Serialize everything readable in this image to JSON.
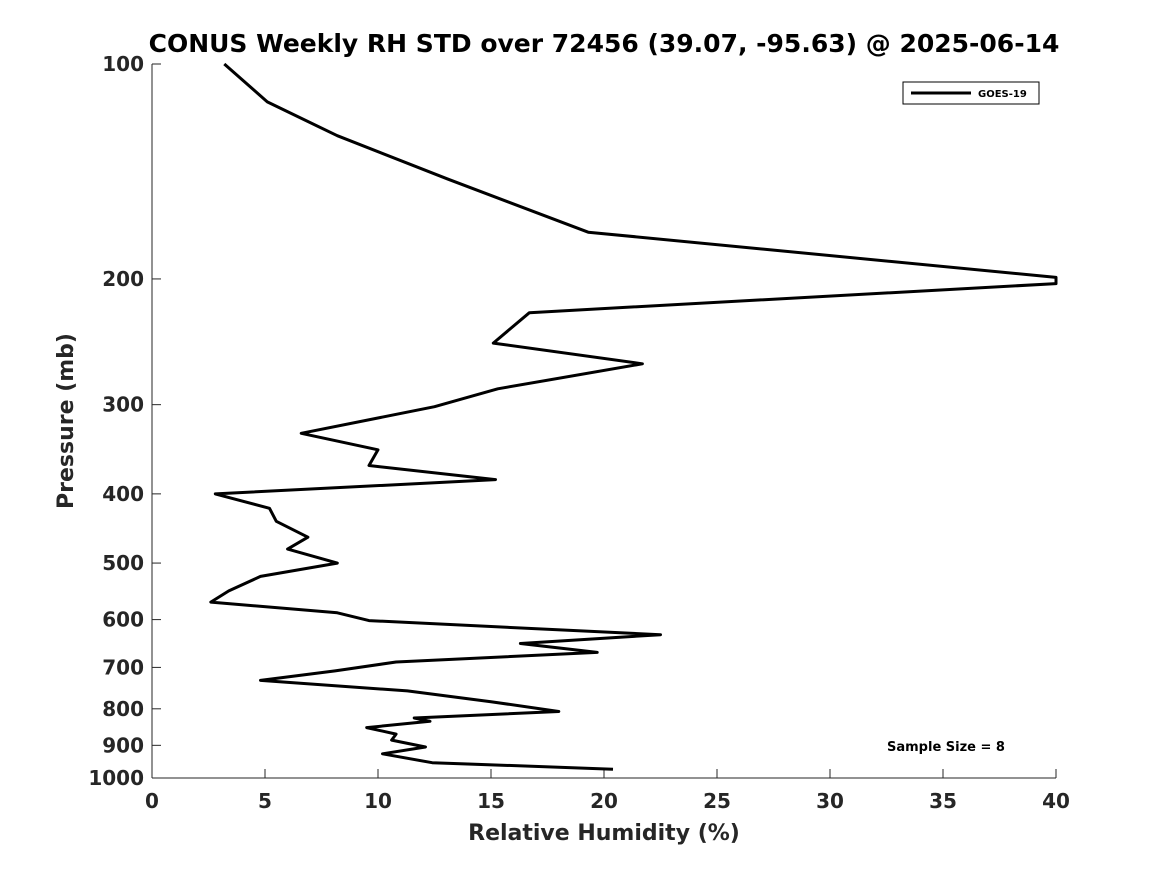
{
  "chart_data": {
    "type": "line",
    "title": "CONUS Weekly RH STD over 72456 (39.07, -95.63) @ 2025-06-14",
    "xlabel": "Relative Humidity (%)",
    "ylabel": "Pressure (mb)",
    "xlim": [
      0,
      40
    ],
    "ylim": [
      1000,
      100
    ],
    "yscale": "log",
    "xticks": [
      0,
      5,
      10,
      15,
      20,
      25,
      30,
      35,
      40
    ],
    "xtick_labels": [
      "0",
      "5",
      "10",
      "15",
      "20",
      "25",
      "30",
      "35",
      "40"
    ],
    "yticks": [
      100,
      200,
      300,
      400,
      500,
      600,
      700,
      800,
      900,
      1000
    ],
    "ytick_labels": [
      "100",
      "200",
      "300",
      "400",
      "500",
      "600",
      "700",
      "800",
      "900",
      "1000"
    ],
    "legend_position": "top-right",
    "annotation": "Sample Size = 8",
    "series": [
      {
        "name": "GOES-19",
        "color": "#000000",
        "x": [
          3.2,
          5.1,
          8.2,
          13.1,
          19.3,
          40.0,
          40.0,
          16.7,
          15.1,
          21.7,
          15.3,
          12.5,
          6.6,
          10.0,
          9.6,
          15.2,
          2.8,
          5.2,
          5.5,
          6.9,
          6.0,
          8.2,
          4.8,
          3.4,
          2.6,
          8.2,
          9.6,
          22.5,
          16.3,
          19.7,
          10.8,
          8.1,
          4.8,
          11.3,
          15.0,
          18.0,
          11.6,
          12.3,
          9.5,
          10.8,
          10.6,
          12.1,
          10.2,
          12.4,
          20.4
        ],
        "y": [
          100,
          113,
          126,
          145,
          172,
          199,
          203,
          223,
          246,
          263,
          285,
          302,
          329,
          347,
          365,
          382,
          400,
          419,
          437,
          460,
          478,
          500,
          522,
          547,
          567,
          587,
          602,
          630,
          648,
          667,
          688,
          708,
          730,
          755,
          782,
          807,
          824,
          833,
          850,
          868,
          885,
          905,
          925,
          952,
          972
        ]
      }
    ]
  }
}
